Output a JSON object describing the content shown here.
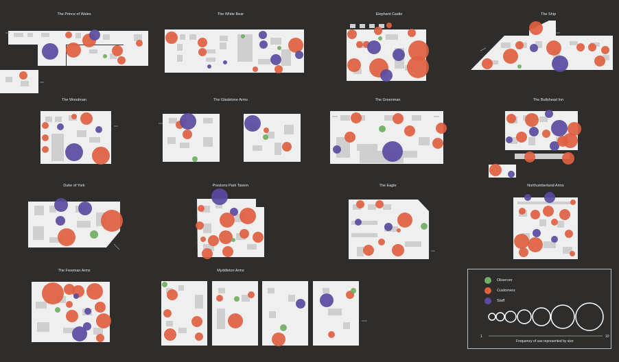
{
  "colors": {
    "observer": "#6fae63",
    "customers": "#e06040",
    "staff": "#5a4ba0",
    "background": "#2e2d2c",
    "plan": "#efefef"
  },
  "pubs": [
    {
      "id": "prince-of-wales",
      "name": "The Prince of Wales"
    },
    {
      "id": "white-bear",
      "name": "The White Bear"
    },
    {
      "id": "elephant-castle",
      "name": "Elephant Castle"
    },
    {
      "id": "the-ship",
      "name": "The Ship"
    },
    {
      "id": "the-woodman",
      "name": "The Woodman"
    },
    {
      "id": "gladstone-arms",
      "name": "The Gladstone Arms"
    },
    {
      "id": "the-greenman",
      "name": "The Greenman"
    },
    {
      "id": "bullshead-inn",
      "name": "The Bullshead Inn"
    },
    {
      "id": "duke-of-york",
      "name": "Duke of York"
    },
    {
      "id": "prestons-park-tavern",
      "name": "Prestons Park Tavern"
    },
    {
      "id": "the-eagle",
      "name": "The Eagle"
    },
    {
      "id": "northumberland-arms",
      "name": "Northumberland Arms"
    },
    {
      "id": "freeman-arms",
      "name": "The Freeman Arms"
    },
    {
      "id": "myddleton-arms",
      "name": "Myddleton Arms"
    }
  ],
  "legend": {
    "items": [
      {
        "label": "Observer",
        "color": "observer"
      },
      {
        "label": "Customers",
        "color": "customers"
      },
      {
        "label": "Staff",
        "color": "staff"
      }
    ],
    "scale_min": "1",
    "scale_max": "10",
    "caption": "Frequency of use represented by size"
  }
}
